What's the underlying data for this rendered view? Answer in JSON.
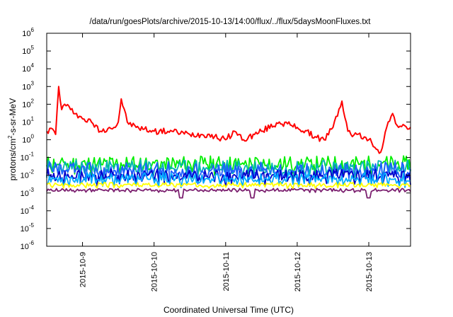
{
  "chart_data": {
    "type": "line",
    "title": "/data/run/goesPlots/archive/2015-10-13/14:00/flux/../flux/5daysMoonFluxes.txt",
    "xlabel": "Coordinated Universal Time (UTC)",
    "ylabel": {
      "base": "protons/cm",
      "sup": "2",
      "rest": "-s-sr-MeV"
    },
    "y_scale": "log",
    "ylim": [
      1e-06,
      1000000.0
    ],
    "xlim": [
      "2015-10-08T12:00",
      "2015-10-13T14:00"
    ],
    "y_ticks": [
      {
        "value": 1e-06,
        "base": "10",
        "exp": "-6"
      },
      {
        "value": 1e-05,
        "base": "10",
        "exp": "-5"
      },
      {
        "value": 0.0001,
        "base": "10",
        "exp": "-4"
      },
      {
        "value": 0.001,
        "base": "10",
        "exp": "-3"
      },
      {
        "value": 0.01,
        "base": "10",
        "exp": "-2"
      },
      {
        "value": 0.1,
        "base": "10",
        "exp": "-1"
      },
      {
        "value": 1,
        "base": "10",
        "exp": "0"
      },
      {
        "value": 10,
        "base": "10",
        "exp": "1"
      },
      {
        "value": 100,
        "base": "10",
        "exp": "2"
      },
      {
        "value": 1000,
        "base": "10",
        "exp": "3"
      },
      {
        "value": 10000,
        "base": "10",
        "exp": "4"
      },
      {
        "value": 100000,
        "base": "10",
        "exp": "5"
      },
      {
        "value": 1000000,
        "base": "10",
        "exp": "6"
      }
    ],
    "x_ticks": [
      {
        "value": "2015-10-09T00:00",
        "label": "2015-10-9"
      },
      {
        "value": "2015-10-10T00:00",
        "label": "2015-10-10"
      },
      {
        "value": "2015-10-11T00:00",
        "label": "2015-10-11"
      },
      {
        "value": "2015-10-12T00:00",
        "label": "2015-10-12"
      },
      {
        "value": "2015-10-13T00:00",
        "label": "2015-10-13"
      }
    ],
    "grid": false,
    "legend": "none",
    "series": [
      {
        "color": "#ff0000",
        "x": [
          "2015-10-08T12:00",
          "2015-10-08T14:00",
          "2015-10-08T15:00",
          "2015-10-08T16:00",
          "2015-10-08T17:00",
          "2015-10-08T18:00",
          "2015-10-08T20:00",
          "2015-10-08T22:00",
          "2015-10-09T00:00",
          "2015-10-09T03:00",
          "2015-10-09T06:00",
          "2015-10-09T09:00",
          "2015-10-09T11:00",
          "2015-10-09T12:00",
          "2015-10-09T13:00",
          "2015-10-09T15:00",
          "2015-10-09T18:00",
          "2015-10-10T00:00",
          "2015-10-10T06:00",
          "2015-10-10T12:00",
          "2015-10-10T18:00",
          "2015-10-11T00:00",
          "2015-10-11T03:00",
          "2015-10-11T06:00",
          "2015-10-11T12:00",
          "2015-10-11T18:00",
          "2015-10-12T00:00",
          "2015-10-12T06:00",
          "2015-10-12T09:00",
          "2015-10-12T12:00",
          "2015-10-12T15:00",
          "2015-10-12T17:00",
          "2015-10-12T18:00",
          "2015-10-12T20:00",
          "2015-10-13T00:00",
          "2015-10-13T04:00",
          "2015-10-13T06:00",
          "2015-10-13T08:00",
          "2015-10-13T10:00",
          "2015-10-13T14:00"
        ],
        "values": [
          3,
          4,
          2,
          1000,
          50,
          100,
          50,
          30,
          15,
          10,
          3,
          5,
          5,
          10,
          200,
          10,
          5,
          3,
          3,
          2,
          2,
          1,
          3,
          1,
          3,
          10,
          5,
          1.5,
          1,
          5,
          150,
          3,
          2,
          2,
          1,
          0.2,
          5,
          30,
          5,
          5
        ]
      },
      {
        "color": "#00ee00",
        "base": 0.05,
        "amp": 0.4,
        "seed": 11
      },
      {
        "color": "#00b4b4",
        "base": 0.03,
        "amp": 0.4,
        "seed": 23
      },
      {
        "color": "#1f5fff",
        "base": 0.02,
        "amp": 0.45,
        "seed": 37
      },
      {
        "color": "#0000cc",
        "base": 0.01,
        "amp": 0.35,
        "seed": 41
      },
      {
        "color": "#00aaff",
        "base": 0.007,
        "amp": 0.3,
        "seed": 53
      },
      {
        "color": "#ffff00",
        "base": 0.003,
        "amp": 0.12,
        "seed": 67
      },
      {
        "color": "#7b1f6f",
        "base": 0.0015,
        "amp": 0.08,
        "seed": 79,
        "dips": [
          "2015-10-10T09:00",
          "2015-10-11T09:00",
          "2015-10-13T00:00"
        ]
      }
    ]
  }
}
